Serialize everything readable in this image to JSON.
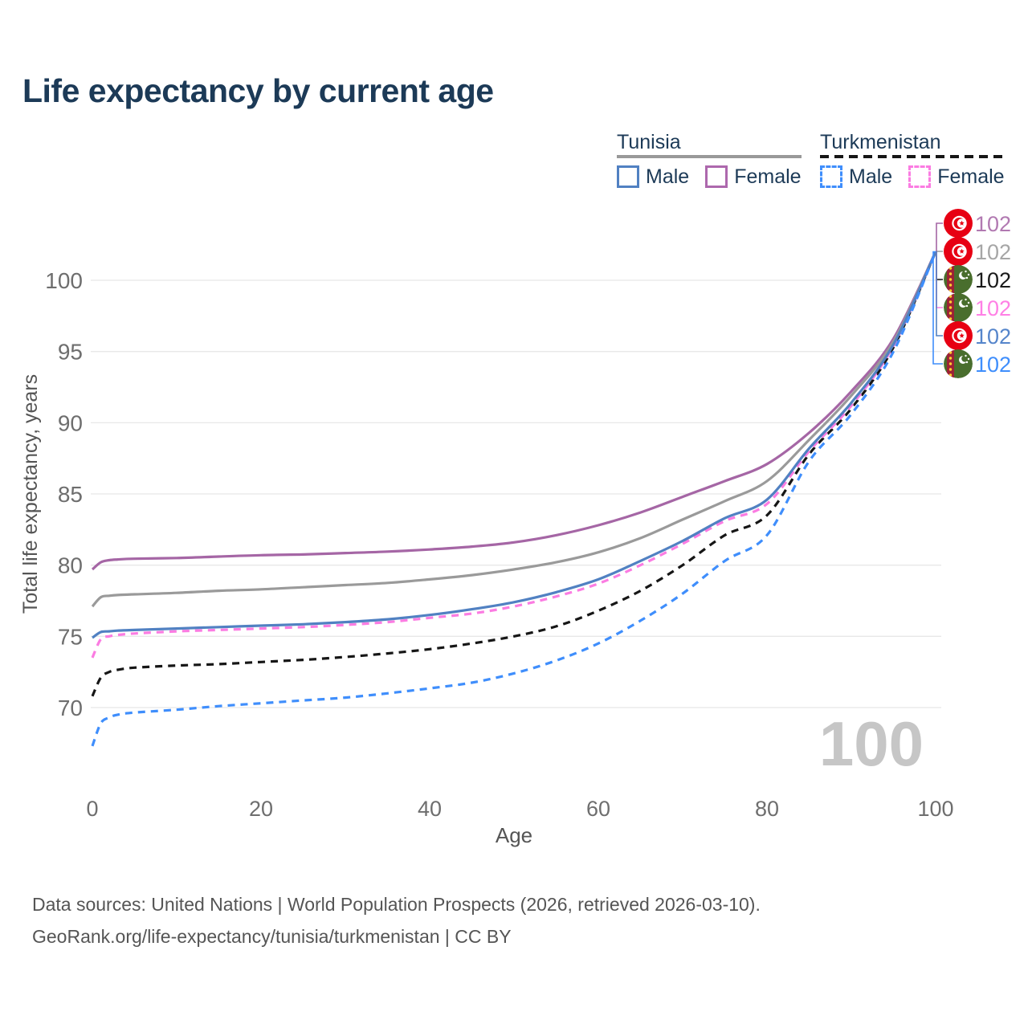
{
  "header": {
    "title": "Life expectancy by current age"
  },
  "legend": {
    "groups": [
      {
        "country": "Tunisia",
        "line_style": "solid",
        "line_color": "#999999",
        "items": [
          {
            "label": "Male",
            "color": "#5181c2",
            "dash": false
          },
          {
            "label": "Female",
            "color": "#ad68ad",
            "dash": false
          }
        ]
      },
      {
        "country": "Turkmenistan",
        "line_style": "dashed",
        "line_color": "#161616",
        "items": [
          {
            "label": "Male",
            "color": "#3f8efc",
            "dash": true
          },
          {
            "label": "Female",
            "color": "#fb7ce2",
            "dash": true
          }
        ]
      }
    ]
  },
  "footer": {
    "line1": "Data sources: United Nations | World Population Prospects (2026, retrieved 2026-03-10).",
    "line2": "GeoRank.org/life-expectancy/tunisia/turkmenistan | CC BY"
  },
  "chart_data": {
    "type": "line",
    "title": "Life expectancy by current age",
    "xlabel": "Age",
    "ylabel": "Total life expectancy, years",
    "x_ticks": [
      0,
      20,
      40,
      60,
      80,
      100
    ],
    "y_ticks": [
      70,
      75,
      80,
      85,
      90,
      95,
      100
    ],
    "xlim": [
      0,
      100
    ],
    "ylim": [
      66,
      103
    ],
    "grid": "horizontal-only",
    "legend_position": "top-right",
    "age_counter_watermark": "100",
    "ages": [
      0,
      1,
      2,
      3,
      5,
      10,
      15,
      20,
      25,
      30,
      35,
      40,
      45,
      50,
      55,
      60,
      65,
      70,
      75,
      80,
      85,
      90,
      95,
      100
    ],
    "series": [
      {
        "name": "Tunisia Female",
        "country": "Tunisia",
        "sex": "female",
        "flag": "tn",
        "color": "#a566a5",
        "label_color": "#b179b1",
        "dash": false,
        "label_row": 0,
        "end_label": "102",
        "values": [
          79.7,
          80.2,
          80.35,
          80.4,
          80.45,
          80.5,
          80.6,
          80.7,
          80.75,
          80.85,
          80.95,
          81.1,
          81.3,
          81.6,
          82.1,
          82.8,
          83.7,
          84.8,
          85.9,
          87.1,
          89.3,
          92.2,
          95.9,
          102
        ]
      },
      {
        "name": "Tunisia",
        "country": "Tunisia",
        "sex": "both",
        "flag": "tn",
        "color": "#9a9a9a",
        "label_color": "#a6a6a6",
        "dash": false,
        "label_row": 1,
        "end_label": "102",
        "values": [
          77.1,
          77.75,
          77.85,
          77.9,
          77.95,
          78.05,
          78.2,
          78.3,
          78.45,
          78.6,
          78.75,
          79.0,
          79.3,
          79.7,
          80.2,
          80.9,
          81.9,
          83.2,
          84.5,
          85.9,
          88.8,
          91.9,
          95.7,
          102
        ]
      },
      {
        "name": "Turkmenistan",
        "country": "Turkmenistan",
        "sex": "both",
        "flag": "tm",
        "color": "#161616",
        "label_color": "#1a1a1a",
        "dash": true,
        "label_row": 2,
        "end_label": "102",
        "values": [
          70.8,
          72.1,
          72.5,
          72.65,
          72.8,
          72.95,
          73.05,
          73.2,
          73.35,
          73.55,
          73.8,
          74.1,
          74.5,
          75.0,
          75.7,
          76.8,
          78.2,
          80.0,
          82.1,
          83.5,
          87.8,
          91.0,
          95.3,
          102
        ]
      },
      {
        "name": "Turkmenistan Female",
        "country": "Turkmenistan",
        "sex": "female",
        "flag": "tm",
        "color": "#fb7ce2",
        "label_color": "#ff80e5",
        "dash": true,
        "label_row": 3,
        "end_label": "102",
        "values": [
          73.5,
          74.8,
          75.0,
          75.1,
          75.2,
          75.35,
          75.45,
          75.55,
          75.65,
          75.8,
          76.0,
          76.3,
          76.6,
          77.1,
          77.8,
          78.7,
          80.0,
          81.5,
          83.1,
          84.3,
          88.0,
          91.2,
          95.4,
          102
        ]
      },
      {
        "name": "Tunisia Male",
        "country": "Tunisia",
        "sex": "male",
        "flag": "tn",
        "color": "#5181c2",
        "label_color": "#5585cb",
        "dash": false,
        "label_row": 4,
        "end_label": "102",
        "values": [
          74.9,
          75.3,
          75.35,
          75.4,
          75.45,
          75.55,
          75.65,
          75.75,
          75.85,
          76.0,
          76.2,
          76.5,
          76.9,
          77.4,
          78.1,
          79.0,
          80.3,
          81.7,
          83.3,
          84.6,
          88.2,
          91.4,
          95.5,
          102
        ]
      },
      {
        "name": "Turkmenistan Male",
        "country": "Turkmenistan",
        "sex": "male",
        "flag": "tm",
        "color": "#3f8efc",
        "label_color": "#3f8efc",
        "dash": true,
        "label_row": 5,
        "end_label": "102",
        "values": [
          67.3,
          68.9,
          69.3,
          69.5,
          69.65,
          69.85,
          70.1,
          70.3,
          70.5,
          70.7,
          71.0,
          71.35,
          71.75,
          72.4,
          73.3,
          74.5,
          76.1,
          78.0,
          80.3,
          82.1,
          87.3,
          90.6,
          95.0,
          102
        ]
      }
    ],
    "colors": {
      "grid": "#e8e8e8",
      "tick_text": "#6e6e6e",
      "axis_title_text": "#555555",
      "watermark": "#c6c6c6",
      "tunisia_flag_red": "#E70013",
      "turkmenistan_flag_green": "#496E2D",
      "turkmenistan_flag_stripe": "#9D2235"
    }
  }
}
